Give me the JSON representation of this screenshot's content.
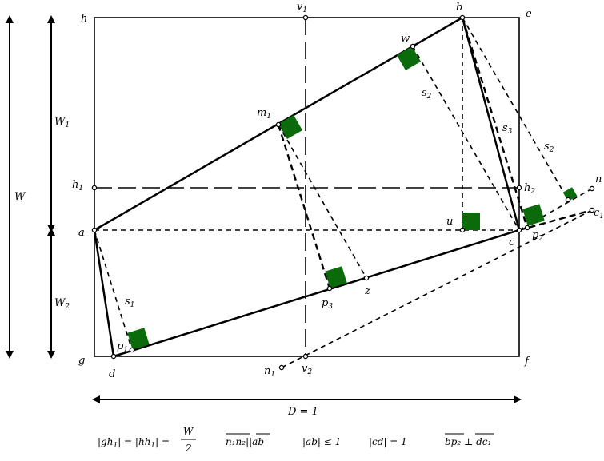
{
  "points": {
    "h": "h",
    "e": "e",
    "g": "g",
    "f": "f",
    "a": "a",
    "b": "b",
    "c": "c",
    "d": "d",
    "v1_main": "v",
    "v1_sub": "1",
    "v2_main": "v",
    "v2_sub": "2",
    "w": "w",
    "m1_main": "m",
    "m1_sub": "1",
    "h1_main": "h",
    "h1_sub": "1",
    "h2_main": "h",
    "h2_sub": "2",
    "u": "u",
    "n1_main": "n",
    "n1_sub": "1",
    "n": "n",
    "c1_main": "c",
    "c1_sub": "1",
    "p1_main": "p",
    "p1_sub": "1",
    "p2_main": "p",
    "p2_sub": "2",
    "p3_main": "p",
    "p3_sub": "3",
    "z": "z"
  },
  "segments": {
    "s1_main": "s",
    "s1_sub": "1",
    "s2a_main": "s",
    "s2a_sub": "2",
    "s2b_main": "s",
    "s2b_sub": "2",
    "s3_main": "s",
    "s3_sub": "3"
  },
  "dimensions": {
    "W": "W",
    "W1_main": "W",
    "W1_sub": "1",
    "W2_main": "W",
    "W2_sub": "2",
    "D": "D = 1"
  },
  "formulas": {
    "f1_left": "|gh",
    "f1_sub1": "1",
    "f1_mid": "| = |hh",
    "f1_sub2": "1",
    "f1_right": "| =",
    "f1_num": "W",
    "f1_den": "2",
    "f2": "n₁n₂||ab",
    "f3": "|ab| ≤ 1",
    "f4": "|cd| = 1",
    "f5": "bp₂ ⊥ dc₁"
  },
  "colors": {
    "square": "#0b6b0b",
    "line": "#000000"
  }
}
